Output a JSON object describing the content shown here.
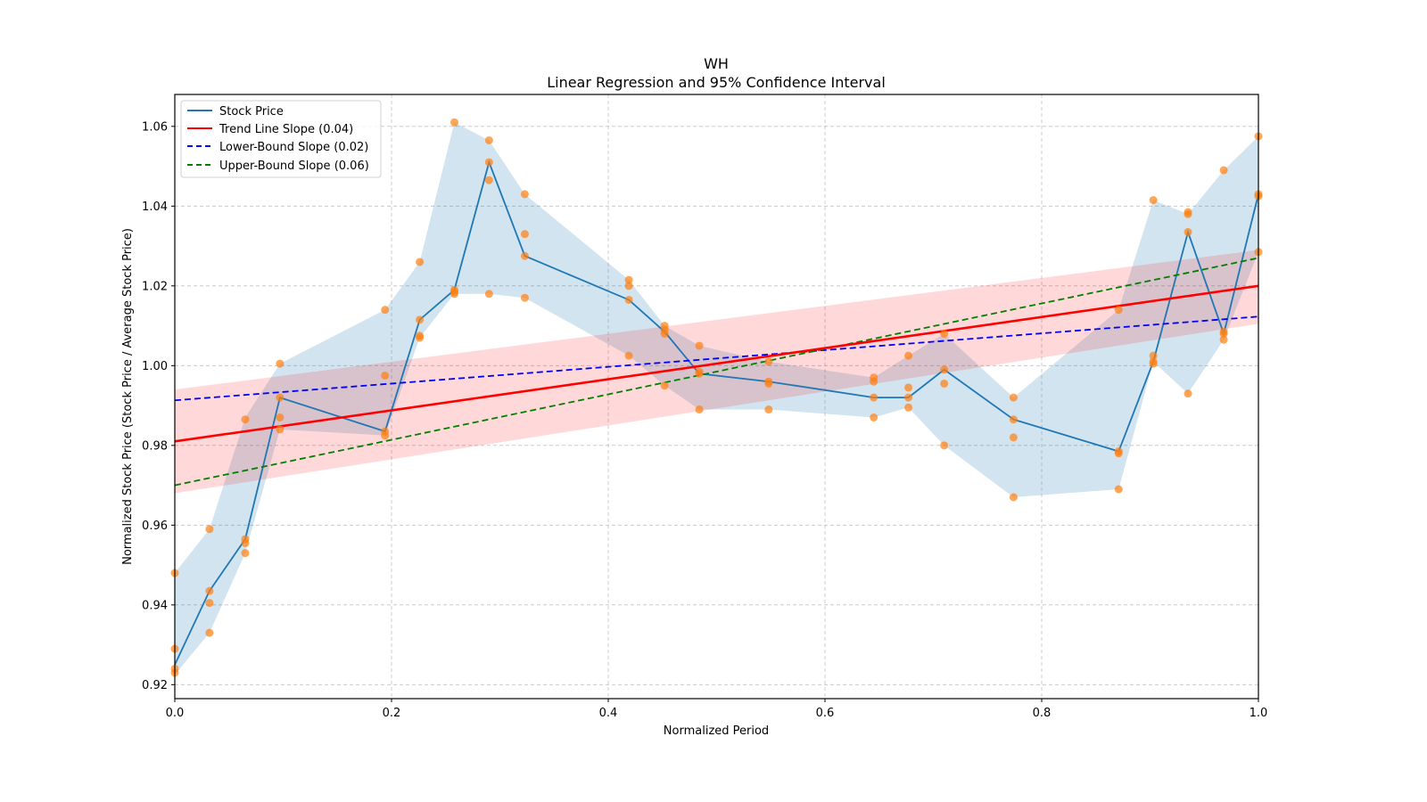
{
  "chart_data": {
    "type": "line",
    "title": "WH",
    "subtitle": "Linear Regression and 95% Confidence Interval",
    "xlabel": "Normalized Period",
    "ylabel": "Normalized Stock Price (Stock Price / Average Stock Price)",
    "xlim": [
      0.0,
      1.0
    ],
    "ylim": [
      0.9165,
      1.068
    ],
    "xticks": [
      0.0,
      0.2,
      0.4,
      0.6,
      0.8,
      1.0
    ],
    "xtick_labels": [
      "0.0",
      "0.2",
      "0.4",
      "0.6",
      "0.8",
      "1.0"
    ],
    "yticks": [
      0.92,
      0.94,
      0.96,
      0.98,
      1.0,
      1.02,
      1.04,
      1.06
    ],
    "ytick_labels": [
      "0.92",
      "0.94",
      "0.96",
      "0.98",
      "1.00",
      "1.02",
      "1.04",
      "1.06"
    ],
    "grid": true,
    "legend_position": "top-left",
    "legend": [
      {
        "label": "Stock Price",
        "color": "#1f77b4",
        "style": "solid"
      },
      {
        "label": "Trend Line Slope (0.04)",
        "color": "#ff0000",
        "style": "solid"
      },
      {
        "label": "Lower-Bound Slope (0.02)",
        "color": "#0000ff",
        "style": "dashed"
      },
      {
        "label": "Upper-Bound Slope (0.06)",
        "color": "#008000",
        "style": "dashed"
      }
    ],
    "colors": {
      "stock": "#1f77b4",
      "stock_band": "#1f77b4",
      "scatter": "#ff7f0e",
      "trend": "#ff0000",
      "trend_band": "#ff0000",
      "lower": "#0000ff",
      "upper": "#008000",
      "grid": "#b0b0b0"
    },
    "stock_price": {
      "x": [
        0.0,
        0.032,
        0.065,
        0.097,
        0.194,
        0.226,
        0.258,
        0.29,
        0.323,
        0.419,
        0.452,
        0.484,
        0.548,
        0.645,
        0.677,
        0.71,
        0.774,
        0.871,
        0.903,
        0.935,
        0.968,
        1.0
      ],
      "y": [
        0.925,
        0.9435,
        0.9565,
        0.992,
        0.9835,
        1.0115,
        1.019,
        1.051,
        1.0275,
        1.0165,
        1.0085,
        0.998,
        0.996,
        0.992,
        0.992,
        0.999,
        0.9865,
        0.9785,
        1.001,
        1.0335,
        1.008,
        1.043
      ]
    },
    "stock_band": {
      "x": [
        0.0,
        0.032,
        0.065,
        0.097,
        0.194,
        0.226,
        0.258,
        0.29,
        0.323,
        0.419,
        0.452,
        0.484,
        0.548,
        0.645,
        0.677,
        0.71,
        0.774,
        0.871,
        0.903,
        0.935,
        0.968,
        1.0
      ],
      "upper": [
        0.948,
        0.959,
        0.987,
        1.0005,
        1.014,
        1.026,
        1.061,
        1.0565,
        1.043,
        1.0215,
        1.01,
        1.005,
        1.001,
        0.997,
        1.0025,
        1.008,
        0.992,
        1.014,
        1.0415,
        1.038,
        1.049,
        1.0575
      ],
      "lower": [
        0.9225,
        0.933,
        0.953,
        0.984,
        0.9825,
        1.007,
        1.018,
        1.018,
        1.017,
        1.0025,
        0.995,
        0.989,
        0.989,
        0.987,
        0.9895,
        0.98,
        0.967,
        0.969,
        1.001,
        0.993,
        1.0065,
        1.0285
      ]
    },
    "scatter_points": [
      [
        0.0,
        0.948
      ],
      [
        0.0,
        0.929
      ],
      [
        0.0,
        0.924
      ],
      [
        0.0,
        0.923
      ],
      [
        0.032,
        0.959
      ],
      [
        0.032,
        0.9435
      ],
      [
        0.032,
        0.9405
      ],
      [
        0.032,
        0.933
      ],
      [
        0.065,
        0.9865
      ],
      [
        0.065,
        0.9565
      ],
      [
        0.065,
        0.9555
      ],
      [
        0.065,
        0.953
      ],
      [
        0.097,
        1.0005
      ],
      [
        0.097,
        0.992
      ],
      [
        0.097,
        0.987
      ],
      [
        0.097,
        0.984
      ],
      [
        0.194,
        1.014
      ],
      [
        0.194,
        0.9975
      ],
      [
        0.194,
        0.9835
      ],
      [
        0.194,
        0.9825
      ],
      [
        0.226,
        1.026
      ],
      [
        0.226,
        1.0115
      ],
      [
        0.226,
        1.0075
      ],
      [
        0.226,
        1.007
      ],
      [
        0.258,
        1.061
      ],
      [
        0.258,
        1.019
      ],
      [
        0.258,
        1.018
      ],
      [
        0.258,
        1.0185
      ],
      [
        0.29,
        1.0565
      ],
      [
        0.29,
        1.051
      ],
      [
        0.29,
        1.0465
      ],
      [
        0.29,
        1.018
      ],
      [
        0.323,
        1.043
      ],
      [
        0.323,
        1.033
      ],
      [
        0.323,
        1.0275
      ],
      [
        0.323,
        1.017
      ],
      [
        0.419,
        1.0215
      ],
      [
        0.419,
        1.02
      ],
      [
        0.419,
        1.0165
      ],
      [
        0.419,
        1.0025
      ],
      [
        0.452,
        1.01
      ],
      [
        0.452,
        1.009
      ],
      [
        0.452,
        1.008
      ],
      [
        0.452,
        0.995
      ],
      [
        0.484,
        1.005
      ],
      [
        0.484,
        0.9985
      ],
      [
        0.484,
        0.998
      ],
      [
        0.484,
        0.989
      ],
      [
        0.548,
        1.001
      ],
      [
        0.548,
        0.996
      ],
      [
        0.548,
        0.9955
      ],
      [
        0.548,
        0.989
      ],
      [
        0.645,
        0.997
      ],
      [
        0.645,
        0.996
      ],
      [
        0.645,
        0.992
      ],
      [
        0.645,
        0.987
      ],
      [
        0.677,
        1.0025
      ],
      [
        0.677,
        0.9945
      ],
      [
        0.677,
        0.992
      ],
      [
        0.677,
        0.9895
      ],
      [
        0.71,
        1.008
      ],
      [
        0.71,
        0.999
      ],
      [
        0.71,
        0.9955
      ],
      [
        0.71,
        0.98
      ],
      [
        0.774,
        0.992
      ],
      [
        0.774,
        0.9865
      ],
      [
        0.774,
        0.982
      ],
      [
        0.774,
        0.967
      ],
      [
        0.871,
        1.014
      ],
      [
        0.871,
        0.9785
      ],
      [
        0.871,
        0.978
      ],
      [
        0.871,
        0.969
      ],
      [
        0.903,
        1.0415
      ],
      [
        0.903,
        1.0025
      ],
      [
        0.903,
        1.001
      ],
      [
        0.903,
        1.0005
      ],
      [
        0.935,
        1.0385
      ],
      [
        0.935,
        1.038
      ],
      [
        0.935,
        1.0335
      ],
      [
        0.935,
        0.993
      ],
      [
        0.968,
        1.049
      ],
      [
        0.968,
        1.0085
      ],
      [
        0.968,
        1.008
      ],
      [
        0.968,
        1.0065
      ],
      [
        1.0,
        1.0575
      ],
      [
        1.0,
        1.043
      ],
      [
        1.0,
        1.0425
      ],
      [
        1.0,
        1.0285
      ]
    ],
    "trend_line": {
      "slope": 0.039,
      "intercept": 0.981,
      "label_slope": "0.04"
    },
    "trend_band": {
      "x": [
        0.0,
        1.0
      ],
      "upper": [
        0.994,
        1.029
      ],
      "lower": [
        0.968,
        1.0105
      ]
    },
    "lower_bound_line": {
      "slope": 0.021,
      "intercept": 0.9913,
      "label_slope": "0.02"
    },
    "upper_bound_line": {
      "slope": 0.057,
      "intercept": 0.97,
      "label_slope": "0.06"
    }
  }
}
